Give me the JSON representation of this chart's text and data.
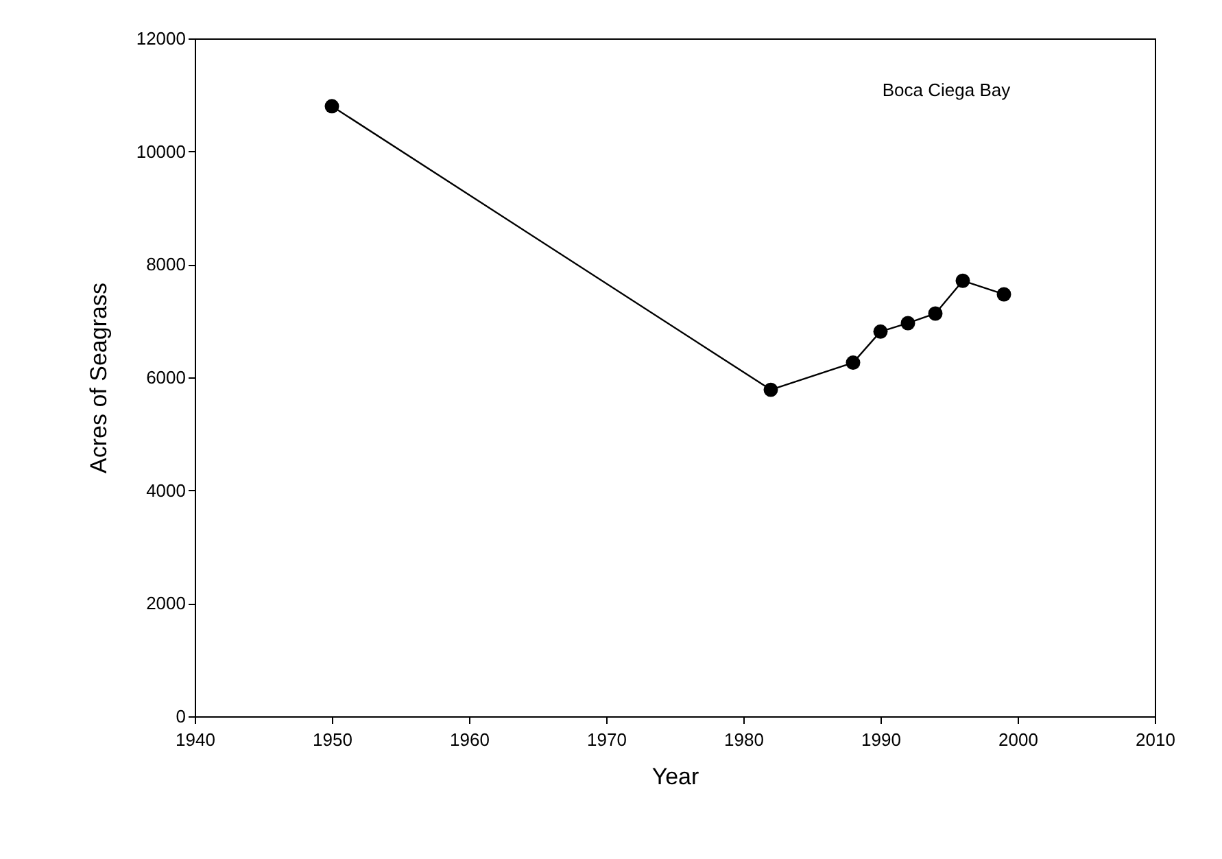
{
  "chart_data": {
    "type": "line",
    "xlabel": "Year",
    "ylabel": "Acres of Seagrass",
    "annotations": [
      "Boca Ciega Bay"
    ],
    "x": [
      1950,
      1982,
      1988,
      1990,
      1992,
      1994,
      1996,
      1999
    ],
    "series": [
      {
        "color": "#000000",
        "values": [
          10800,
          5780,
          6260,
          6810,
          6960,
          7130,
          7710,
          7470
        ]
      }
    ],
    "xlim": [
      1940,
      2010
    ],
    "xticks": [
      1940,
      1950,
      1960,
      1970,
      1980,
      1990,
      2000,
      2010
    ],
    "ylim": [
      0,
      12000
    ],
    "yticks": [
      0,
      2000,
      4000,
      6000,
      8000,
      10000,
      12000
    ],
    "marker": "circle",
    "line_style": "solid",
    "grid": false
  }
}
